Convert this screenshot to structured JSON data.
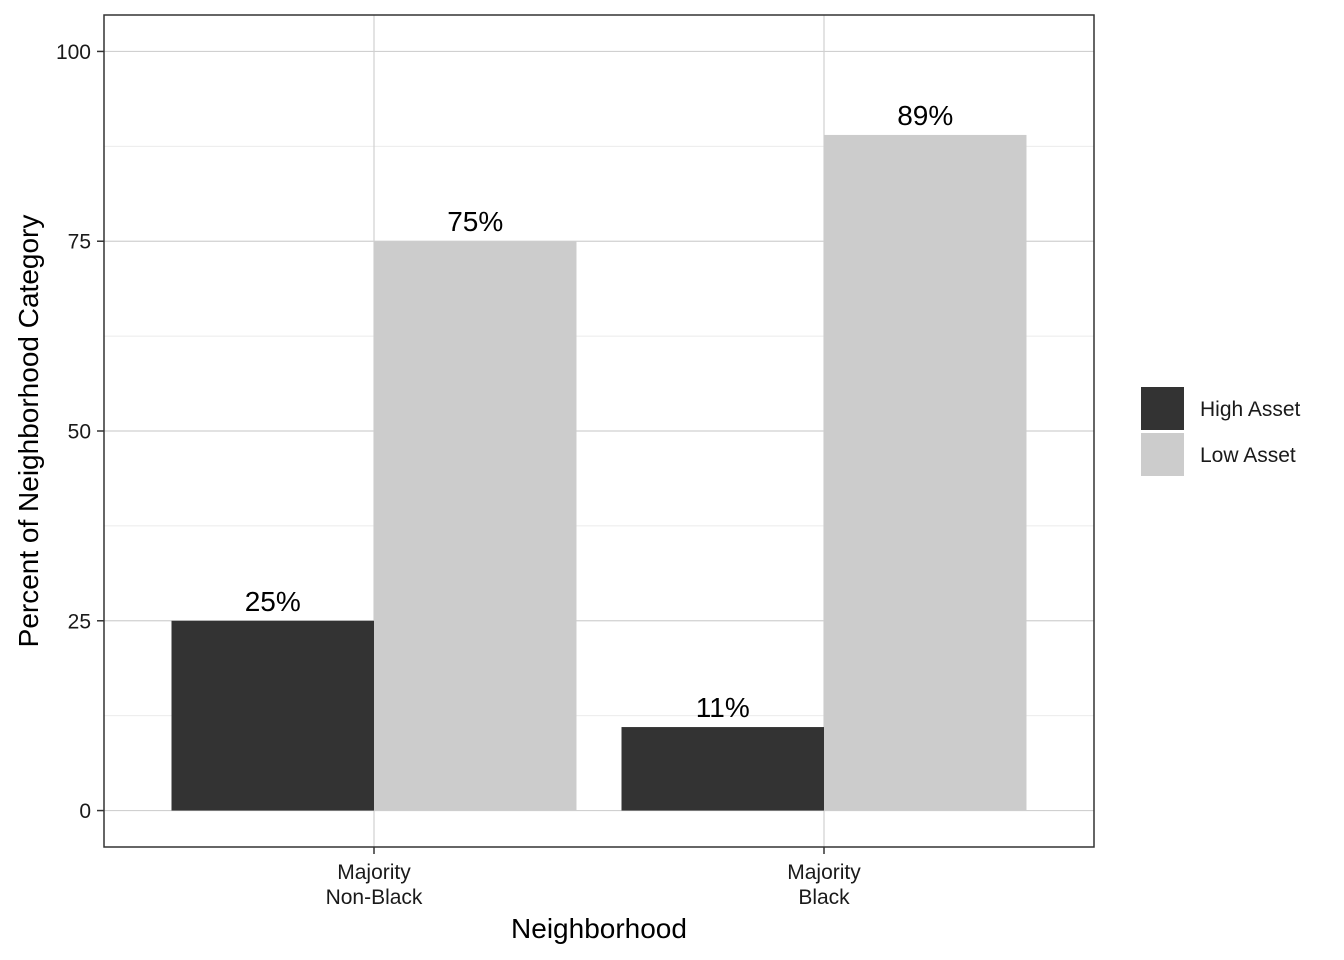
{
  "chart_data": {
    "type": "bar",
    "title": "",
    "xlabel": "Neighborhood",
    "ylabel": "Percent of Neighborhood Category",
    "categories": [
      [
        "Majority",
        "Non-Black"
      ],
      [
        "Majority",
        "Black"
      ]
    ],
    "series": [
      {
        "name": "High Asset",
        "color": "#333333",
        "values": [
          25,
          11
        ],
        "labels": [
          "25%",
          "11%"
        ]
      },
      {
        "name": "Low Asset",
        "color": "#cccccc",
        "values": [
          75,
          89
        ],
        "labels": [
          "75%",
          "89%"
        ]
      }
    ],
    "ylim": [
      -4.8,
      104.8
    ],
    "yticks": [
      0,
      25,
      50,
      75,
      100
    ],
    "yticks_minor": [
      12.5,
      37.5,
      62.5,
      87.5
    ],
    "grid": true,
    "legend_position": "right"
  }
}
